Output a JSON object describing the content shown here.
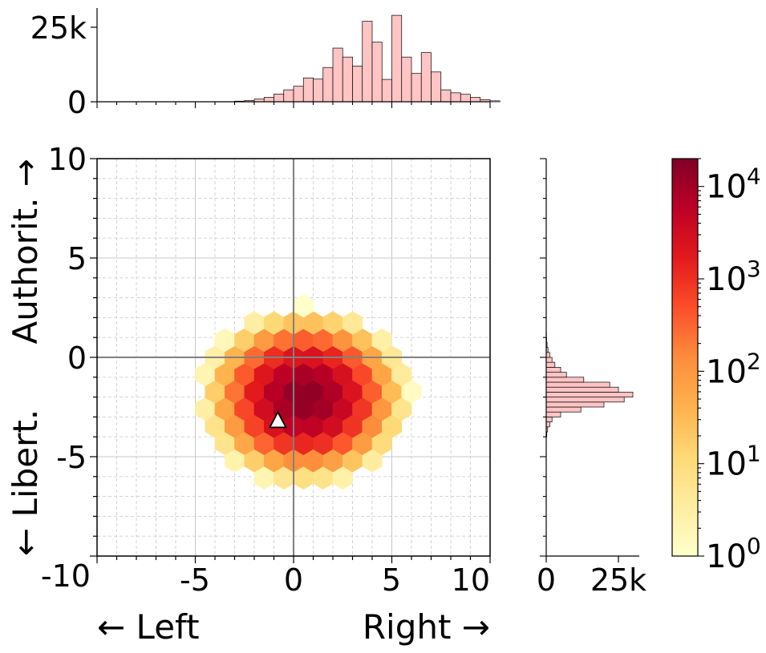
{
  "chart_data": {
    "type": "hexbin",
    "title": "",
    "x_axis": {
      "range": [
        -10,
        10
      ],
      "ticks": [
        -10,
        -5,
        0,
        5,
        10
      ],
      "tick_labels": [
        "-10",
        "-5",
        "0",
        "5",
        "10"
      ],
      "label_left": "← Left",
      "label_right": "Right →"
    },
    "y_axis": {
      "range": [
        -10,
        10
      ],
      "ticks": [
        -10,
        -5,
        0,
        5,
        10
      ],
      "tick_labels": [
        "-10",
        "-5",
        "0",
        "5",
        "10"
      ],
      "label_bottom": "← Libert.",
      "label_top": "Authorit. →"
    },
    "grid": true,
    "reference_lines": {
      "x": 0,
      "y": 0
    },
    "marker": {
      "shape": "triangle",
      "x": -0.8,
      "y": -3.2,
      "color": "#ffffff"
    },
    "hexbin": {
      "gridsize": 20,
      "cell_width": 1.0,
      "center_x": 0.6,
      "center_y": -2.0,
      "sigma_x": 1.25,
      "sigma_y": 1.05,
      "peak_count": 15000,
      "min_count": 1,
      "colormap": "YlOrRd",
      "color_scale": "log"
    },
    "colorbar": {
      "scale": "log",
      "range": [
        1,
        20000
      ],
      "ticks": [
        1,
        10,
        100,
        1000,
        10000
      ],
      "tick_labels": [
        "10",
        "10",
        "10",
        "10",
        "10"
      ],
      "tick_exponents": [
        "0",
        "1",
        "2",
        "3",
        "4"
      ],
      "colors": [
        "#ffffcc",
        "#ffeda0",
        "#fed976",
        "#feb24c",
        "#fd8d3c",
        "#fc4e2a",
        "#e31a1c",
        "#bd0026",
        "#800026"
      ]
    },
    "top_histogram": {
      "orientation": "vertical",
      "bin_width": 0.5,
      "bin_start": -3.0,
      "counts": [
        200,
        400,
        900,
        1500,
        2600,
        4000,
        5200,
        8000,
        7600,
        11500,
        18000,
        15000,
        12000,
        27000,
        20000,
        7500,
        29000,
        15000,
        9500,
        16500,
        10000,
        4000,
        3000,
        2500,
        1500,
        700,
        300
      ],
      "count_ticks": [
        0,
        25000
      ],
      "count_tick_labels": [
        "0",
        "25k"
      ],
      "fill": "#ffc4c4",
      "edge": "#000000"
    },
    "right_histogram": {
      "orientation": "horizontal",
      "bin_width": 0.25,
      "bin_start": -4.0,
      "counts": [
        200,
        500,
        1200,
        2000,
        5000,
        12000,
        20000,
        27000,
        30000,
        25000,
        22000,
        13000,
        7000,
        5000,
        3000,
        2000,
        1200,
        600,
        300,
        150,
        80,
        40
      ],
      "count_ticks": [
        0,
        25000
      ],
      "count_tick_labels": [
        "0",
        "25k"
      ],
      "fill": "#ffc4c4",
      "edge": "#000000"
    }
  }
}
